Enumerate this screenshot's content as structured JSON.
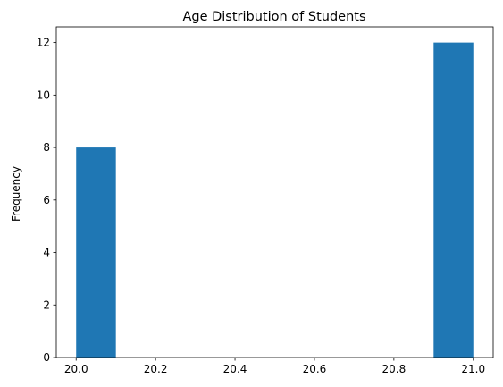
{
  "chart_data": {
    "type": "bar",
    "title": "Age Distribution of Students",
    "xlabel": "",
    "ylabel": "Frequency",
    "bins": [
      {
        "start": 20.0,
        "end": 20.1,
        "value": 8
      },
      {
        "start": 20.9,
        "end": 21.0,
        "value": 12
      }
    ],
    "xlim": [
      19.95,
      21.05
    ],
    "ylim": [
      0,
      12.6
    ],
    "xticks": [
      20.0,
      20.2,
      20.4,
      20.6,
      20.8,
      21.0
    ],
    "xtick_labels": [
      "20.0",
      "20.2",
      "20.4",
      "20.6",
      "20.8",
      "21.0"
    ],
    "yticks": [
      0,
      2,
      4,
      6,
      8,
      10,
      12
    ],
    "ytick_labels": [
      "0",
      "2",
      "4",
      "6",
      "8",
      "10",
      "12"
    ],
    "grid": false,
    "bar_color": "#1f77b4"
  }
}
